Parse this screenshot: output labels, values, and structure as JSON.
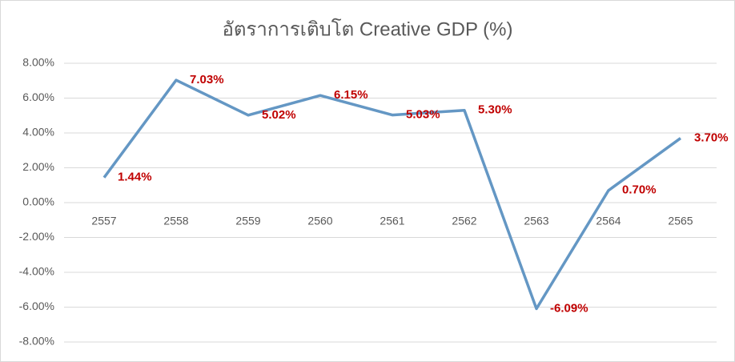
{
  "chart_data": {
    "type": "line",
    "title": "อัตราการเติบโต Creative GDP (%)",
    "categories": [
      "2557",
      "2558",
      "2559",
      "2560",
      "2561",
      "2562",
      "2563",
      "2564",
      "2565"
    ],
    "series": [
      {
        "name": "Creative GDP",
        "color": "#6497c4",
        "values": [
          1.44,
          7.03,
          5.02,
          6.15,
          5.03,
          5.3,
          -6.09,
          0.7,
          3.7
        ],
        "value_labels": [
          "1.44%",
          "7.03%",
          "5.02%",
          "6.15%",
          "5.03%",
          "5.30%",
          "-6.09%",
          "0.70%",
          "3.70%"
        ],
        "label_color": "#c00000"
      }
    ],
    "ylim": [
      -8,
      8
    ],
    "yticks": [
      {
        "value": -8,
        "label": "-8.00%"
      },
      {
        "value": -6,
        "label": "-6.00%"
      },
      {
        "value": -4,
        "label": "-4.00%"
      },
      {
        "value": -2,
        "label": "-2.00%"
      },
      {
        "value": 0,
        "label": "0.00%"
      },
      {
        "value": 2,
        "label": "2.00%"
      },
      {
        "value": 4,
        "label": "4.00%"
      },
      {
        "value": 6,
        "label": "6.00%"
      },
      {
        "value": 8,
        "label": "8.00%"
      }
    ],
    "grid": true
  }
}
